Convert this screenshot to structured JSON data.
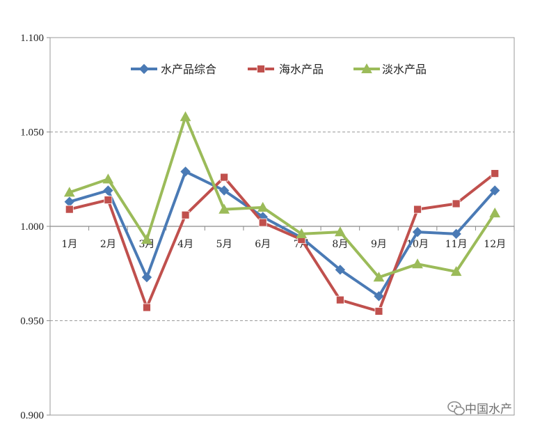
{
  "chart_data": {
    "type": "line",
    "title": "",
    "xlabel": "",
    "ylabel": "",
    "categories": [
      "1月",
      "2月",
      "3月",
      "4月",
      "5月",
      "6月",
      "7月",
      "8月",
      "9月",
      "10月",
      "11月",
      "12月"
    ],
    "ylim": [
      0.9,
      1.1
    ],
    "yticks": [
      "1.100",
      "1.050",
      "1.000",
      "0.950",
      "0.900"
    ],
    "y_tick_values": [
      1.1,
      1.05,
      1.0,
      0.95,
      0.9
    ],
    "x_axis_crosses_at": 1.0,
    "grid": "dashed horizontal at 1.050 and 0.950",
    "legend_position": "top",
    "series": [
      {
        "name": "水产品综合",
        "color": "#4a7ab5",
        "marker": "diamond",
        "values": [
          1.013,
          1.019,
          0.973,
          1.029,
          1.019,
          1.005,
          0.994,
          0.977,
          0.963,
          0.997,
          0.996,
          1.019
        ]
      },
      {
        "name": "海水产品",
        "color": "#c0504d",
        "marker": "square",
        "values": [
          1.009,
          1.014,
          0.957,
          1.006,
          1.026,
          1.002,
          0.993,
          0.961,
          0.955,
          1.009,
          1.012,
          1.028
        ]
      },
      {
        "name": "淡水产品",
        "color": "#9bbb59",
        "marker": "triangle",
        "values": [
          1.018,
          1.025,
          0.993,
          1.058,
          1.009,
          1.01,
          0.996,
          0.997,
          0.973,
          0.98,
          0.976,
          1.007
        ]
      }
    ]
  },
  "watermark": {
    "text": "中国水产",
    "icon": "wechat-icon"
  }
}
